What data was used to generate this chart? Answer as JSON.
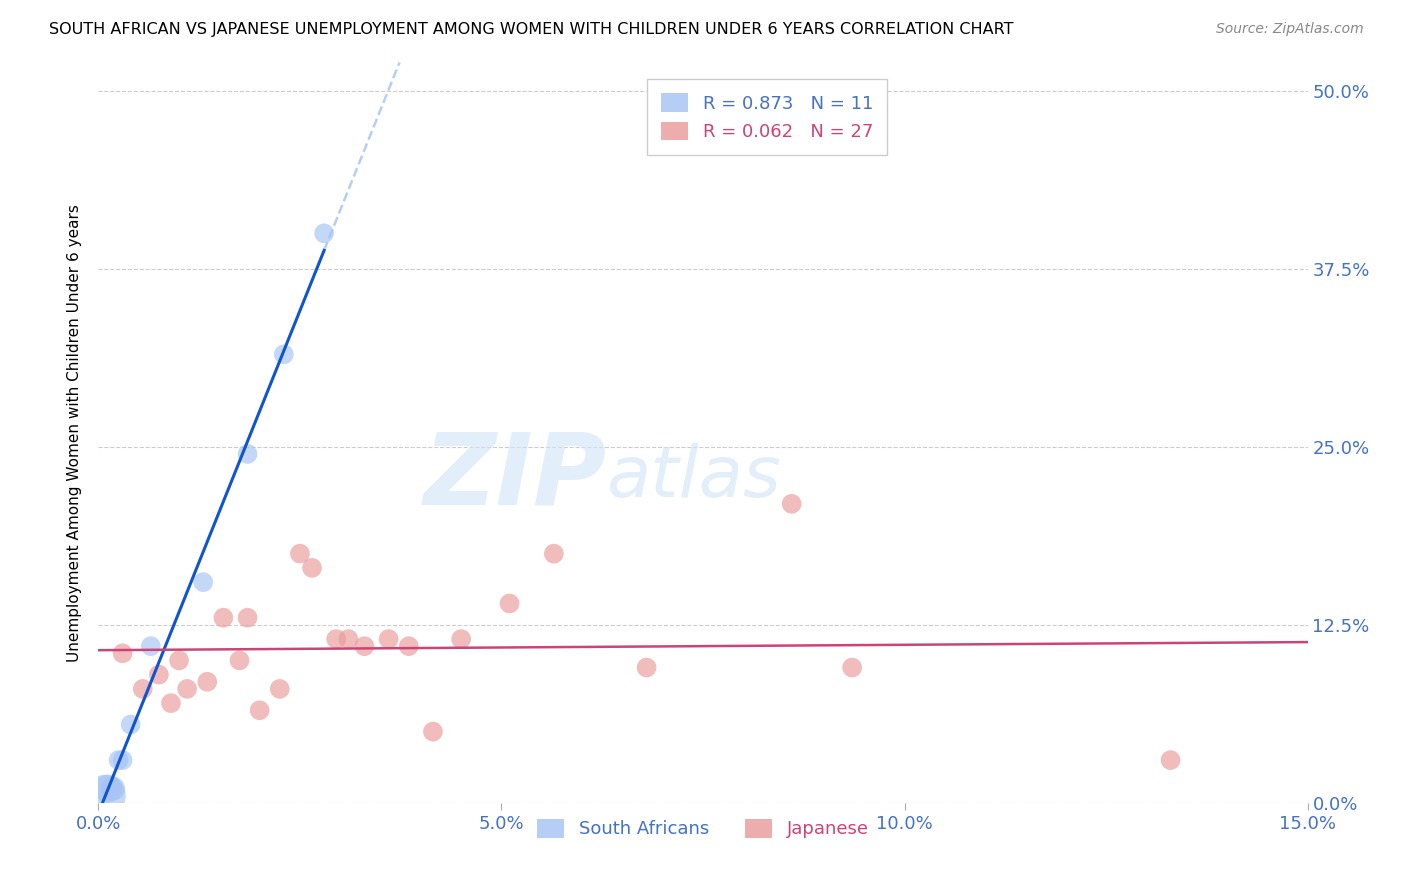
{
  "title": "SOUTH AFRICAN VS JAPANESE UNEMPLOYMENT AMONG WOMEN WITH CHILDREN UNDER 6 YEARS CORRELATION CHART",
  "source": "Source: ZipAtlas.com",
  "ylabel": "Unemployment Among Women with Children Under 6 years",
  "xlim": [
    0.0,
    0.15
  ],
  "ylim": [
    0.0,
    0.52
  ],
  "sa_R": 0.873,
  "sa_N": 11,
  "jp_R": 0.062,
  "jp_N": 27,
  "sa_color": "#a4c2f4",
  "jp_color": "#ea9999",
  "sa_line_color": "#1155cc",
  "jp_line_color": "#cc4477",
  "sa_dash_color": "#a4c2f4",
  "watermark_zip": "ZIP",
  "watermark_atlas": "atlas",
  "sa_points": [
    [
      0.0008,
      0.005
    ],
    [
      0.0012,
      0.01
    ],
    [
      0.0018,
      0.01
    ],
    [
      0.0025,
      0.03
    ],
    [
      0.003,
      0.03
    ],
    [
      0.004,
      0.055
    ],
    [
      0.0065,
      0.11
    ],
    [
      0.013,
      0.155
    ],
    [
      0.0185,
      0.245
    ],
    [
      0.023,
      0.315
    ],
    [
      0.028,
      0.4
    ]
  ],
  "sa_sizes": [
    900,
    400,
    300,
    200,
    200,
    200,
    200,
    200,
    200,
    200,
    200
  ],
  "jp_points": [
    [
      0.003,
      0.105
    ],
    [
      0.0055,
      0.08
    ],
    [
      0.0075,
      0.09
    ],
    [
      0.009,
      0.07
    ],
    [
      0.01,
      0.1
    ],
    [
      0.011,
      0.08
    ],
    [
      0.0135,
      0.085
    ],
    [
      0.0155,
      0.13
    ],
    [
      0.0175,
      0.1
    ],
    [
      0.0185,
      0.13
    ],
    [
      0.02,
      0.065
    ],
    [
      0.0225,
      0.08
    ],
    [
      0.025,
      0.175
    ],
    [
      0.0265,
      0.165
    ],
    [
      0.0295,
      0.115
    ],
    [
      0.031,
      0.115
    ],
    [
      0.033,
      0.11
    ],
    [
      0.036,
      0.115
    ],
    [
      0.0385,
      0.11
    ],
    [
      0.0415,
      0.05
    ],
    [
      0.045,
      0.115
    ],
    [
      0.051,
      0.14
    ],
    [
      0.0565,
      0.175
    ],
    [
      0.068,
      0.095
    ],
    [
      0.086,
      0.21
    ],
    [
      0.0935,
      0.095
    ],
    [
      0.133,
      0.03
    ]
  ],
  "jp_sizes": [
    200,
    200,
    200,
    200,
    200,
    200,
    200,
    200,
    200,
    200,
    200,
    200,
    200,
    200,
    200,
    200,
    200,
    200,
    200,
    200,
    200,
    200,
    200,
    200,
    200,
    200,
    200
  ],
  "x_tick_vals": [
    0.0,
    0.05,
    0.1,
    0.15
  ],
  "x_tick_labels": [
    "0.0%",
    "5.0%",
    "10.0%",
    "15.0%"
  ],
  "y_tick_vals": [
    0.0,
    0.125,
    0.25,
    0.375,
    0.5
  ],
  "y_tick_labels": [
    "0.0%",
    "12.5%",
    "25.0%",
    "37.5%",
    "50.0%"
  ]
}
